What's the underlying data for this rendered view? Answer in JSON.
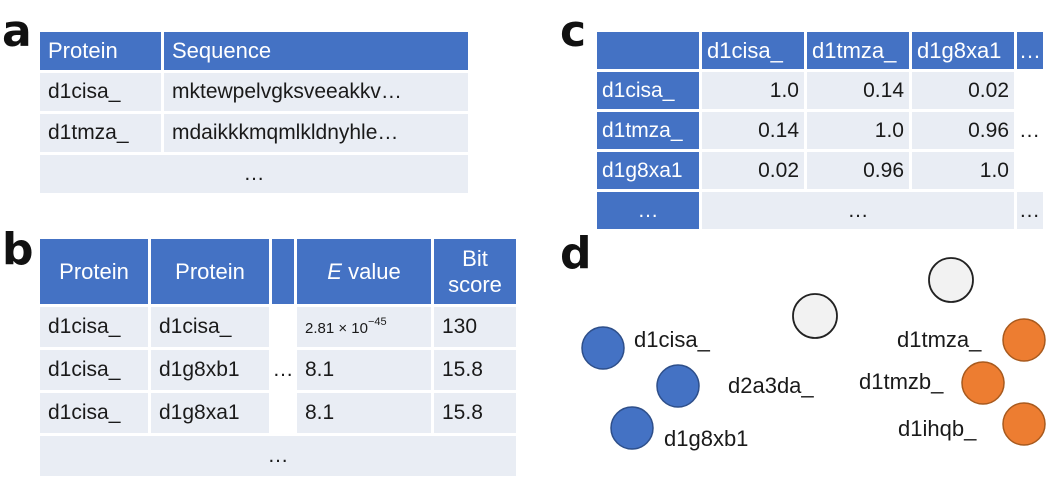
{
  "panels": {
    "a": {
      "letter": "a",
      "headers": [
        "Protein",
        "Sequence"
      ],
      "rows": [
        [
          "d1cisa_",
          "mktewpelvgksveeakkv…"
        ],
        [
          "d1tmza_",
          "mdaikkkmqmlkldnyhle…"
        ]
      ],
      "ellipsis": "…"
    },
    "b": {
      "letter": "b",
      "headers": {
        "protein1": "Protein",
        "protein2": "Protein",
        "evalue_italic": "E",
        "evalue_rest": " value",
        "bit1": "Bit",
        "bit2": "score"
      },
      "rows": [
        {
          "p1": "d1cisa_",
          "p2": "d1cisa_",
          "e_base": "2.81 × 10",
          "e_exp": "−45",
          "bit": "130"
        },
        {
          "p1": "d1cisa_",
          "p2": "d1g8xb1",
          "e_base": "8.1",
          "e_exp": "",
          "bit": "15.8"
        },
        {
          "p1": "d1cisa_",
          "p2": "d1g8xa1",
          "e_base": "8.1",
          "e_exp": "",
          "bit": "15.8"
        }
      ],
      "middle_ellipsis": "…",
      "bottom_ellipsis": "…"
    },
    "c": {
      "letter": "c",
      "col_headers": [
        "d1cisa_",
        "d1tmza_",
        "d1g8xa1",
        "…"
      ],
      "rows": [
        {
          "label": "d1cisa_",
          "values": [
            "1.0",
            "0.14",
            "0.02"
          ],
          "tail": ""
        },
        {
          "label": "d1tmza_",
          "values": [
            "0.14",
            "1.0",
            "0.96"
          ],
          "tail": "…"
        },
        {
          "label": "d1g8xa1",
          "values": [
            "0.02",
            "0.96",
            "1.0"
          ],
          "tail": ""
        }
      ],
      "last_row": {
        "label": "…",
        "middle": "…",
        "tail": "…"
      }
    },
    "d": {
      "letter": "d",
      "colors": {
        "blue": "#4472c4",
        "orange": "#ed7d31",
        "white": "#f2f2f2"
      },
      "nodes": [
        {
          "label": "d1cisa_",
          "color": "blue"
        },
        {
          "label": "",
          "color": "blue"
        },
        {
          "label": "d1g8xb1",
          "color": "blue"
        },
        {
          "label": "d2a3da_",
          "color": "white"
        },
        {
          "label": "",
          "color": "white"
        },
        {
          "label": "d1tmza_",
          "color": "orange"
        },
        {
          "label": "d1tmzb_",
          "color": "orange"
        },
        {
          "label": "d1ihqb_",
          "color": "orange"
        }
      ]
    }
  }
}
